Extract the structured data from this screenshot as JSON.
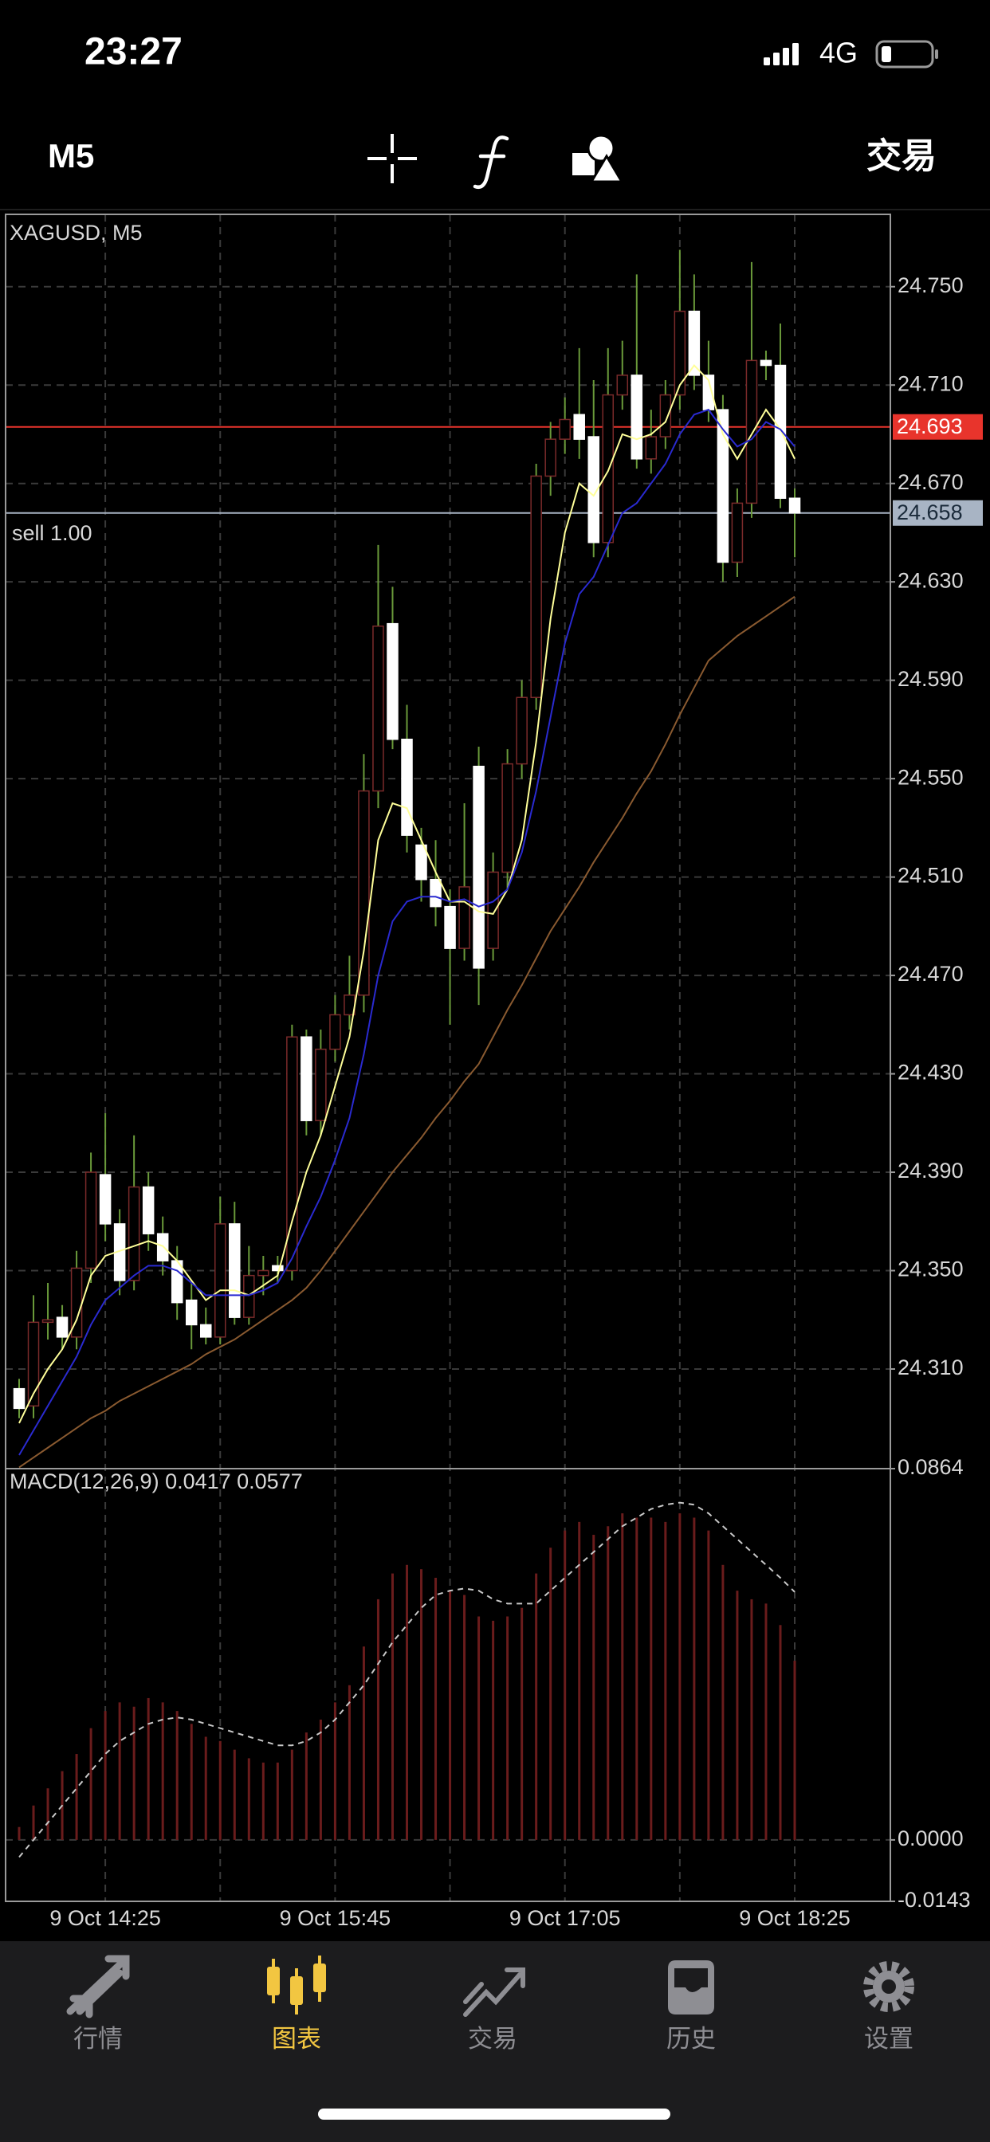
{
  "status_bar": {
    "time": "23:27",
    "network": "4G"
  },
  "toolbar": {
    "timeframe": "M5",
    "trade": "交易"
  },
  "chart_data": [
    {
      "type": "candlestick",
      "title": "XAGUSD, M5",
      "categories": [
        null,
        null,
        null,
        null,
        null,
        null,
        "9 Oct 14:25",
        null,
        null,
        null,
        null,
        null,
        null,
        null,
        null,
        null,
        null,
        null,
        null,
        null,
        null,
        null,
        "9 Oct 15:45",
        null,
        null,
        null,
        null,
        null,
        null,
        null,
        null,
        null,
        null,
        null,
        null,
        null,
        null,
        null,
        "9 Oct 17:05",
        null,
        null,
        null,
        null,
        null,
        null,
        null,
        null,
        null,
        null,
        null,
        null,
        null,
        null,
        null,
        "9 Oct 18:25"
      ],
      "open": [
        24.302,
        24.295,
        24.329,
        24.331,
        24.323,
        24.351,
        24.389,
        24.369,
        24.346,
        24.384,
        24.365,
        24.354,
        24.338,
        24.328,
        24.323,
        24.369,
        24.331,
        24.348,
        24.352,
        24.35,
        24.445,
        24.411,
        24.44,
        24.454,
        24.462,
        24.545,
        24.613,
        24.566,
        24.523,
        24.509,
        24.498,
        24.481,
        24.555,
        24.481,
        24.512,
        24.556,
        24.583,
        24.673,
        24.688,
        24.698,
        24.689,
        24.646,
        24.706,
        24.714,
        24.68,
        24.689,
        24.706,
        24.74,
        24.714,
        24.7,
        24.638,
        24.662,
        24.72,
        24.718,
        24.664
      ],
      "high": [
        24.306,
        24.34,
        24.345,
        24.336,
        24.358,
        24.398,
        24.414,
        24.375,
        24.405,
        24.39,
        24.372,
        24.36,
        24.345,
        24.335,
        24.38,
        24.378,
        24.36,
        24.356,
        24.356,
        24.45,
        24.448,
        24.448,
        24.462,
        24.478,
        24.56,
        24.645,
        24.628,
        24.58,
        24.53,
        24.525,
        24.505,
        24.54,
        24.563,
        24.52,
        24.562,
        24.59,
        24.678,
        24.695,
        24.705,
        24.725,
        24.712,
        24.725,
        24.728,
        24.755,
        24.7,
        24.712,
        24.765,
        24.755,
        24.728,
        24.706,
        24.668,
        24.76,
        24.724,
        24.735,
        24.668
      ],
      "low": [
        24.29,
        24.29,
        24.322,
        24.318,
        24.318,
        24.345,
        24.362,
        24.34,
        24.342,
        24.358,
        24.348,
        24.33,
        24.318,
        24.32,
        24.32,
        24.328,
        24.328,
        24.34,
        24.345,
        24.346,
        24.405,
        24.405,
        24.435,
        24.448,
        24.455,
        24.538,
        24.562,
        24.52,
        24.5,
        24.49,
        24.45,
        24.476,
        24.458,
        24.476,
        24.505,
        24.55,
        24.578,
        24.665,
        24.682,
        24.68,
        24.64,
        24.64,
        24.7,
        24.676,
        24.674,
        24.684,
        24.7,
        24.708,
        24.695,
        24.63,
        24.632,
        24.656,
        24.712,
        24.66,
        24.64
      ],
      "close": [
        24.294,
        24.329,
        24.33,
        24.323,
        24.351,
        24.39,
        24.369,
        24.346,
        24.384,
        24.365,
        24.354,
        24.337,
        24.328,
        24.323,
        24.369,
        24.331,
        24.348,
        24.35,
        24.35,
        24.445,
        24.411,
        24.44,
        24.454,
        24.462,
        24.545,
        24.612,
        24.566,
        24.527,
        24.509,
        24.498,
        24.481,
        24.506,
        24.473,
        24.512,
        24.556,
        24.583,
        24.673,
        24.688,
        24.696,
        24.688,
        24.646,
        24.706,
        24.714,
        24.68,
        24.689,
        24.706,
        24.74,
        24.714,
        24.7,
        24.638,
        24.662,
        24.72,
        24.718,
        24.664,
        24.658
      ],
      "bull_color": "#000000",
      "bull_outline": "#7a2a2a",
      "bear_color": "#ffffff",
      "wick_color": "#6a9a3a",
      "lines": [
        {
          "color": "#ffff99",
          "values": [
            24.288,
            24.3,
            24.31,
            24.318,
            24.33,
            24.348,
            24.356,
            24.358,
            24.36,
            24.362,
            24.36,
            24.354,
            24.346,
            24.338,
            24.342,
            24.342,
            24.34,
            24.344,
            24.348,
            24.37,
            24.39,
            24.405,
            24.425,
            24.445,
            24.48,
            24.525,
            24.54,
            24.538,
            24.525,
            24.512,
            24.5,
            24.5,
            24.496,
            24.495,
            24.505,
            24.525,
            24.565,
            24.615,
            24.65,
            24.67,
            24.665,
            24.675,
            24.69,
            24.688,
            24.69,
            24.695,
            24.71,
            24.718,
            24.712,
            24.69,
            24.68,
            24.69,
            24.7,
            24.692,
            24.68
          ]
        },
        {
          "color": "#2a2ad0",
          "values": [
            24.275,
            24.285,
            24.295,
            24.305,
            24.315,
            24.328,
            24.338,
            24.343,
            24.348,
            24.352,
            24.352,
            24.35,
            24.345,
            24.34,
            24.34,
            24.34,
            24.34,
            24.342,
            24.345,
            24.355,
            24.368,
            24.38,
            24.395,
            24.412,
            24.438,
            24.47,
            24.492,
            24.5,
            24.502,
            24.502,
            24.5,
            24.501,
            24.498,
            24.5,
            24.505,
            24.52,
            24.545,
            24.575,
            24.605,
            24.625,
            24.632,
            24.645,
            24.658,
            24.662,
            24.67,
            24.678,
            24.69,
            24.698,
            24.7,
            24.692,
            24.685,
            24.688,
            24.695,
            24.692,
            24.685
          ]
        },
        {
          "color": "#8a5a30",
          "values": [
            24.27,
            24.274,
            24.278,
            24.282,
            24.286,
            24.29,
            24.293,
            24.297,
            24.3,
            24.303,
            24.306,
            24.309,
            24.312,
            24.316,
            24.319,
            24.322,
            24.326,
            24.33,
            24.334,
            24.338,
            24.343,
            24.35,
            24.358,
            24.366,
            24.374,
            24.382,
            24.39,
            24.397,
            24.404,
            24.412,
            24.419,
            24.427,
            24.434,
            24.445,
            24.456,
            24.466,
            24.477,
            24.488,
            24.497,
            24.506,
            24.516,
            24.525,
            24.534,
            24.544,
            24.553,
            24.564,
            24.576,
            24.587,
            24.598,
            24.603,
            24.608,
            24.612,
            24.616,
            24.62,
            24.624
          ]
        }
      ],
      "ylim": [
        24.2695,
        24.7794
      ],
      "yticks": [
        {
          "value": 24.31,
          "label": "24.310"
        },
        {
          "value": 24.35,
          "label": "24.350"
        },
        {
          "value": 24.39,
          "label": "24.390"
        },
        {
          "value": 24.43,
          "label": "24.430"
        },
        {
          "value": 24.47,
          "label": "24.470"
        },
        {
          "value": 24.51,
          "label": "24.510"
        },
        {
          "value": 24.55,
          "label": "24.550"
        },
        {
          "value": 24.59,
          "label": "24.590"
        },
        {
          "value": 24.63,
          "label": "24.630"
        },
        {
          "value": 24.67,
          "label": "24.670"
        },
        {
          "value": 24.71,
          "label": "24.710"
        },
        {
          "value": 24.75,
          "label": "24.750"
        }
      ],
      "grid": true,
      "price_lines": [
        {
          "value": 24.693,
          "color": "#e8342c",
          "text_color": "#ffffff"
        },
        {
          "value": 24.658,
          "color": "#a8b4c4",
          "text_color": "#1a2a3a"
        }
      ],
      "order_label": "sell 1.00"
    },
    {
      "type": "macd",
      "title": "MACD(12,26,9) 0.0417 0.0577",
      "values": [
        0.003,
        0.008,
        0.012,
        0.016,
        0.02,
        0.026,
        0.03,
        0.032,
        0.031,
        0.033,
        0.032,
        0.03,
        0.027,
        0.024,
        0.023,
        0.021,
        0.019,
        0.018,
        0.018,
        0.021,
        0.025,
        0.028,
        0.032,
        0.036,
        0.045,
        0.056,
        0.062,
        0.064,
        0.063,
        0.061,
        0.058,
        0.057,
        0.052,
        0.051,
        0.052,
        0.054,
        0.062,
        0.068,
        0.072,
        0.074,
        0.071,
        0.073,
        0.076,
        0.075,
        0.075,
        0.074,
        0.076,
        0.075,
        0.072,
        0.064,
        0.058,
        0.056,
        0.055,
        0.05,
        0.0417
      ],
      "signal": [
        -0.004,
        0.0,
        0.004,
        0.008,
        0.012,
        0.016,
        0.02,
        0.023,
        0.025,
        0.027,
        0.028,
        0.0285,
        0.028,
        0.027,
        0.026,
        0.025,
        0.024,
        0.023,
        0.022,
        0.022,
        0.023,
        0.025,
        0.028,
        0.032,
        0.036,
        0.041,
        0.046,
        0.05,
        0.054,
        0.057,
        0.058,
        0.0585,
        0.058,
        0.056,
        0.055,
        0.055,
        0.055,
        0.058,
        0.061,
        0.064,
        0.067,
        0.07,
        0.073,
        0.075,
        0.077,
        0.078,
        0.0785,
        0.078,
        0.076,
        0.073,
        0.07,
        0.067,
        0.064,
        0.061,
        0.0577
      ],
      "color": "#6a1c1c",
      "signal_color": "#c8c8c8",
      "ylim": [
        -0.0143,
        0.0864
      ],
      "yticks": [
        0.0864,
        {
          "value": 0,
          "label": "0.0000"
        },
        -0.0143
      ],
      "grid": true
    }
  ],
  "tab_bar": {
    "tabs": [
      "行情",
      "图表",
      "交易",
      "历史",
      "设置"
    ],
    "active": 1,
    "active_color": "#f2c641",
    "color": "#8e8e93"
  }
}
